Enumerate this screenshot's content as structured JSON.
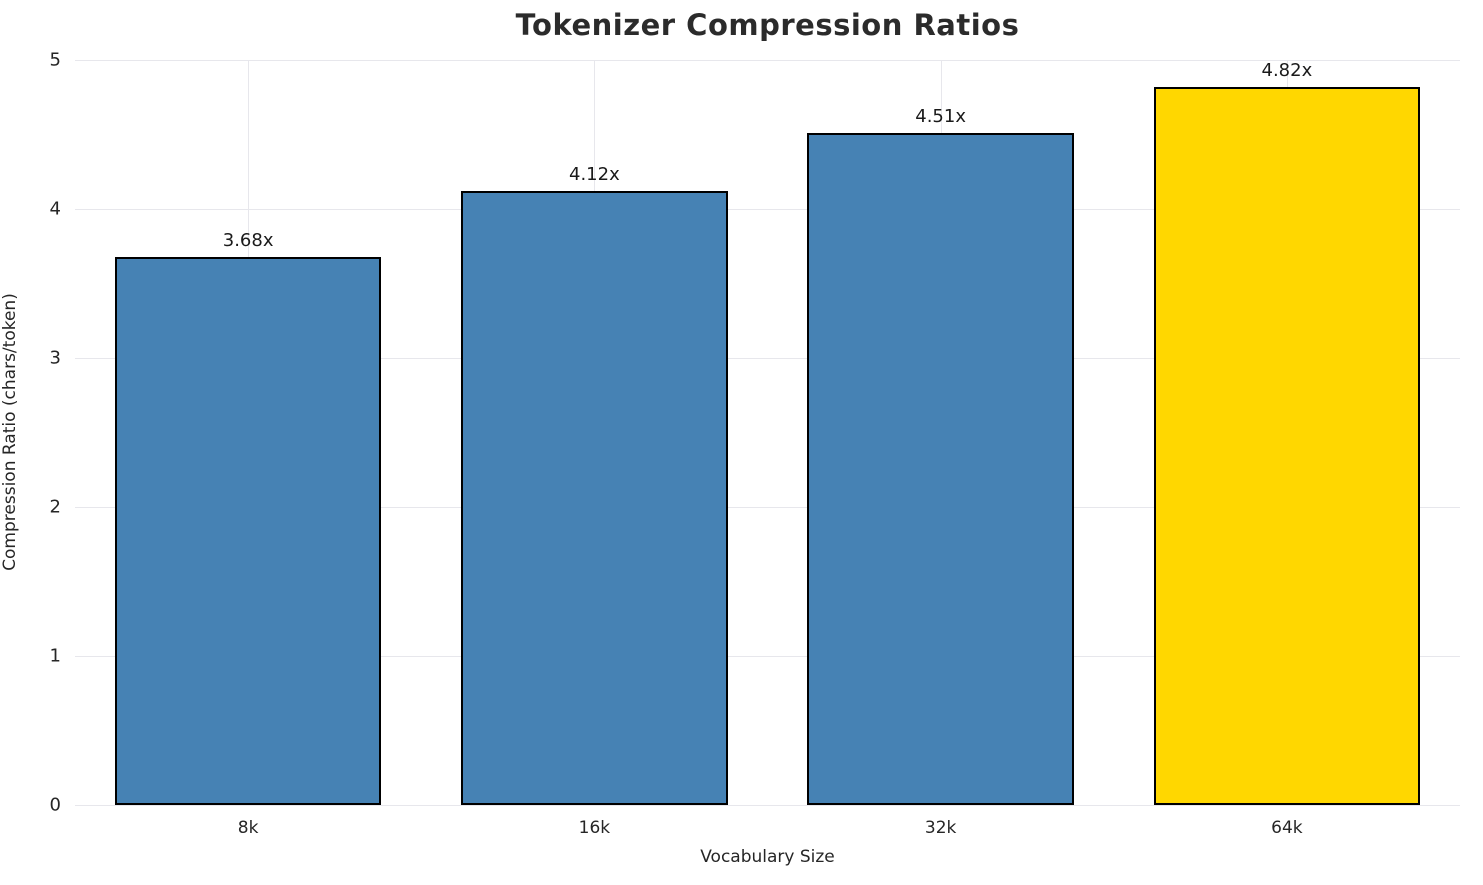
{
  "chart_data": {
    "type": "bar",
    "title": "Tokenizer Compression Ratios",
    "xlabel": "Vocabulary Size",
    "ylabel": "Compression Ratio (chars/token)",
    "categories": [
      "8k",
      "16k",
      "32k",
      "64k"
    ],
    "values": [
      3.68,
      4.12,
      4.51,
      4.82
    ],
    "value_labels": [
      "3.68x",
      "4.12x",
      "4.51x",
      "4.82x"
    ],
    "bar_colors": [
      "#4682B4",
      "#4682B4",
      "#4682B4",
      "#FFD700"
    ],
    "bar_edge_color": "#000000",
    "ylim": [
      0,
      5
    ],
    "yticks": [
      0,
      1,
      2,
      3,
      4,
      5
    ],
    "grid": true,
    "grid_color": "#e7e7ec",
    "legend": "none",
    "background_color": "#ffffff"
  }
}
